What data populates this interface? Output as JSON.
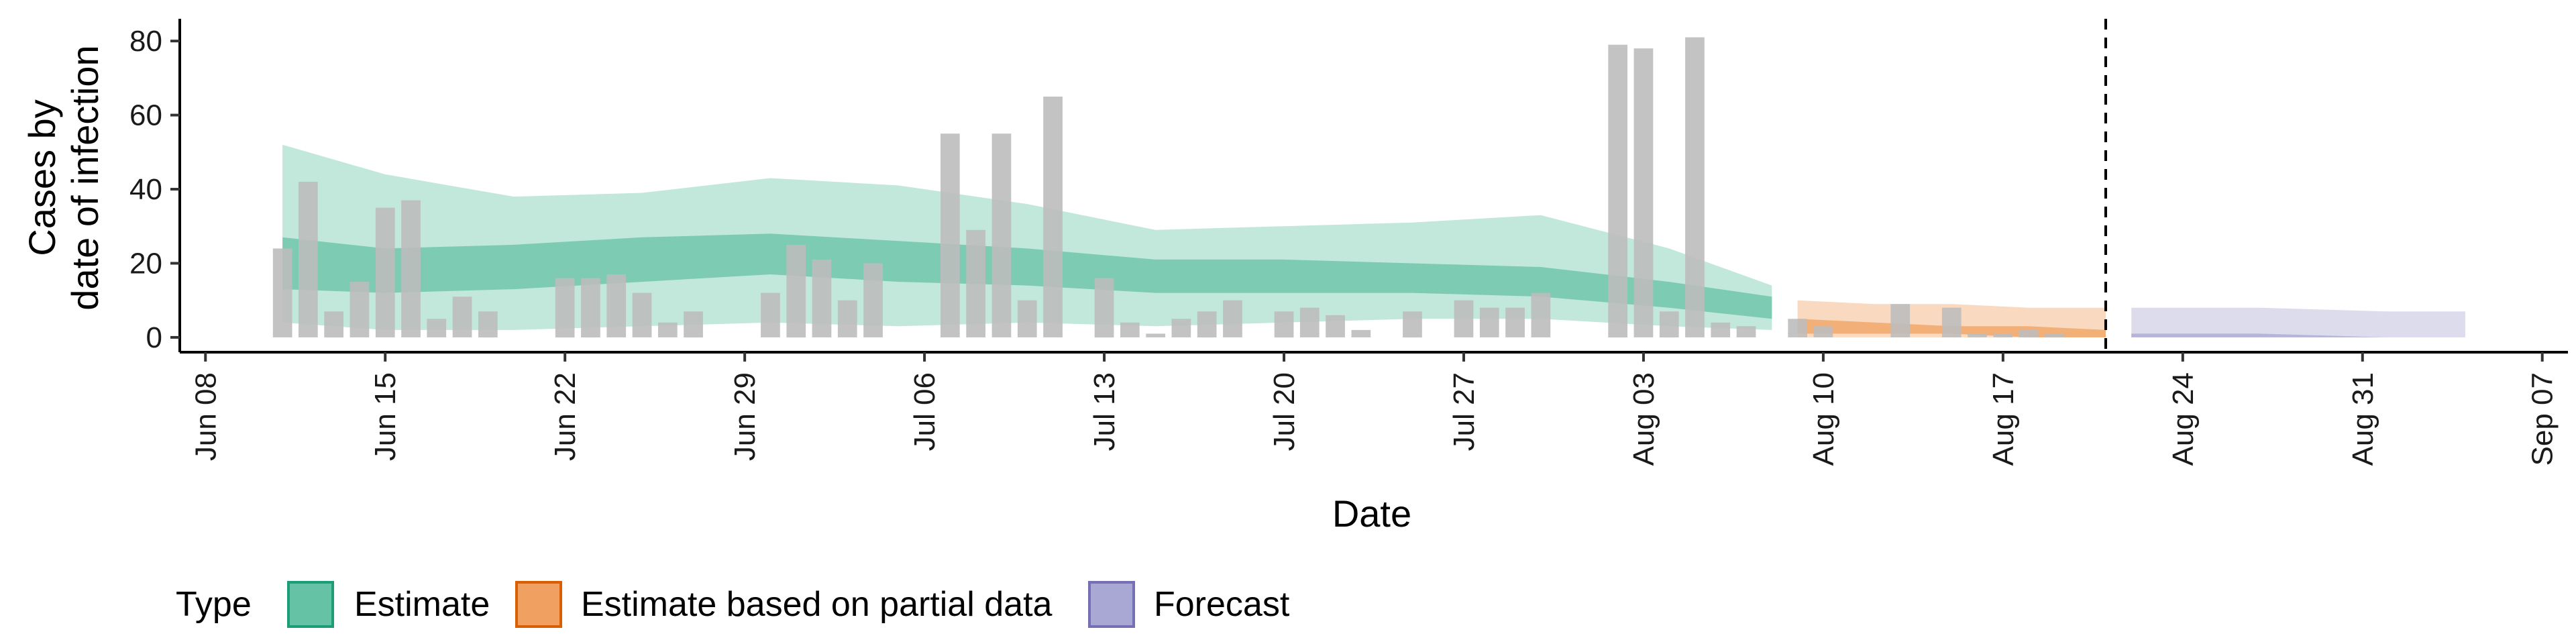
{
  "chart_data": {
    "type": "bar",
    "xlabel": "Date",
    "ylabel_lines": [
      "Cases by",
      "date of infection"
    ],
    "x_domain": [
      "2020-06-07",
      "2020-09-08"
    ],
    "ylim": [
      -4,
      86
    ],
    "y_ticks": [
      0,
      20,
      40,
      60,
      80
    ],
    "x_ticks": [
      {
        "date": "2020-06-08",
        "label": "Jun 08"
      },
      {
        "date": "2020-06-15",
        "label": "Jun 15"
      },
      {
        "date": "2020-06-22",
        "label": "Jun 22"
      },
      {
        "date": "2020-06-29",
        "label": "Jun 29"
      },
      {
        "date": "2020-07-06",
        "label": "Jul 06"
      },
      {
        "date": "2020-07-13",
        "label": "Jul 13"
      },
      {
        "date": "2020-07-20",
        "label": "Jul 20"
      },
      {
        "date": "2020-07-27",
        "label": "Jul 27"
      },
      {
        "date": "2020-08-03",
        "label": "Aug 03"
      },
      {
        "date": "2020-08-10",
        "label": "Aug 10"
      },
      {
        "date": "2020-08-17",
        "label": "Aug 17"
      },
      {
        "date": "2020-08-24",
        "label": "Aug 24"
      },
      {
        "date": "2020-08-31",
        "label": "Aug 31"
      },
      {
        "date": "2020-09-07",
        "label": "Sep 07"
      }
    ],
    "vline_date": "2020-08-21",
    "grid": false,
    "legend": {
      "title": "Type",
      "position": "bottom",
      "entries": [
        {
          "label": "Estimate",
          "fill": "#66c2a5",
          "stroke": "#1b9e77"
        },
        {
          "label": "Estimate based on partial data",
          "fill": "#f0a060",
          "stroke": "#d95f02"
        },
        {
          "label": "Forecast",
          "fill": "#a9a7d3",
          "stroke": "#7570b3"
        }
      ]
    },
    "bar_color": "#bdbdbd",
    "reported_cases": {
      "x": [
        "2020-06-11",
        "2020-06-12",
        "2020-06-13",
        "2020-06-14",
        "2020-06-15",
        "2020-06-16",
        "2020-06-17",
        "2020-06-18",
        "2020-06-19",
        "2020-06-20",
        "2020-06-21",
        "2020-06-22",
        "2020-06-23",
        "2020-06-24",
        "2020-06-25",
        "2020-06-26",
        "2020-06-27",
        "2020-06-28",
        "2020-06-29",
        "2020-06-30",
        "2020-07-01",
        "2020-07-02",
        "2020-07-03",
        "2020-07-04",
        "2020-07-05",
        "2020-07-06",
        "2020-07-07",
        "2020-07-08",
        "2020-07-09",
        "2020-07-10",
        "2020-07-11",
        "2020-07-12",
        "2020-07-13",
        "2020-07-14",
        "2020-07-15",
        "2020-07-16",
        "2020-07-17",
        "2020-07-18",
        "2020-07-19",
        "2020-07-20",
        "2020-07-21",
        "2020-07-22",
        "2020-07-23",
        "2020-07-24",
        "2020-07-25",
        "2020-07-26",
        "2020-07-27",
        "2020-07-28",
        "2020-07-29",
        "2020-07-30",
        "2020-07-31",
        "2020-08-01",
        "2020-08-02",
        "2020-08-03",
        "2020-08-04",
        "2020-08-05",
        "2020-08-06",
        "2020-08-07",
        "2020-08-08",
        "2020-08-09",
        "2020-08-10",
        "2020-08-11",
        "2020-08-12",
        "2020-08-13",
        "2020-08-14",
        "2020-08-15",
        "2020-08-16",
        "2020-08-17",
        "2020-08-18",
        "2020-08-19",
        "2020-08-20"
      ],
      "y": [
        24,
        42,
        7,
        15,
        35,
        37,
        5,
        11,
        7,
        0,
        0,
        16,
        16,
        17,
        12,
        4,
        7,
        0,
        0,
        12,
        25,
        21,
        10,
        20,
        0,
        0,
        55,
        29,
        55,
        10,
        65,
        0,
        16,
        4,
        1,
        5,
        7,
        10,
        0,
        7,
        8,
        6,
        2,
        0,
        7,
        0,
        10,
        8,
        8,
        12,
        0,
        0,
        79,
        78,
        7,
        81,
        4,
        3,
        0,
        5,
        3,
        0,
        0,
        9,
        0,
        8,
        1,
        1,
        2,
        1,
        0
      ]
    },
    "series": [
      {
        "name": "Estimate",
        "x": [
          "2020-06-11",
          "2020-06-15",
          "2020-06-20",
          "2020-06-25",
          "2020-06-30",
          "2020-07-05",
          "2020-07-10",
          "2020-07-15",
          "2020-07-20",
          "2020-07-25",
          "2020-07-30",
          "2020-08-04",
          "2020-08-08"
        ],
        "outer_lo": [
          4,
          2,
          2,
          3,
          4,
          3,
          4,
          3,
          4,
          5,
          5,
          3,
          2
        ],
        "outer_hi": [
          52,
          44,
          38,
          39,
          43,
          41,
          36,
          29,
          30,
          31,
          33,
          24,
          14
        ],
        "inner_lo": [
          13,
          12,
          13,
          15,
          17,
          15,
          14,
          12,
          12,
          12,
          11,
          8,
          5
        ],
        "inner_hi": [
          27,
          24,
          25,
          27,
          28,
          26,
          24,
          21,
          21,
          20,
          19,
          15,
          11
        ]
      },
      {
        "name": "Estimate based on partial data",
        "x": [
          "2020-08-09",
          "2020-08-12",
          "2020-08-15",
          "2020-08-18",
          "2020-08-21"
        ],
        "outer_lo": [
          0,
          0,
          0,
          0,
          0
        ],
        "outer_hi": [
          10,
          9,
          9,
          8,
          8
        ],
        "inner_lo": [
          1,
          1,
          1,
          0,
          0
        ],
        "inner_hi": [
          5,
          4,
          3,
          3,
          2
        ]
      },
      {
        "name": "Forecast",
        "x": [
          "2020-08-22",
          "2020-08-27",
          "2020-09-01",
          "2020-09-04"
        ],
        "outer_lo": [
          0,
          0,
          0,
          0
        ],
        "outer_hi": [
          8,
          8,
          7,
          7
        ],
        "inner_lo": [
          0,
          0,
          0,
          0
        ],
        "inner_hi": [
          1,
          1,
          0,
          0
        ]
      }
    ]
  }
}
